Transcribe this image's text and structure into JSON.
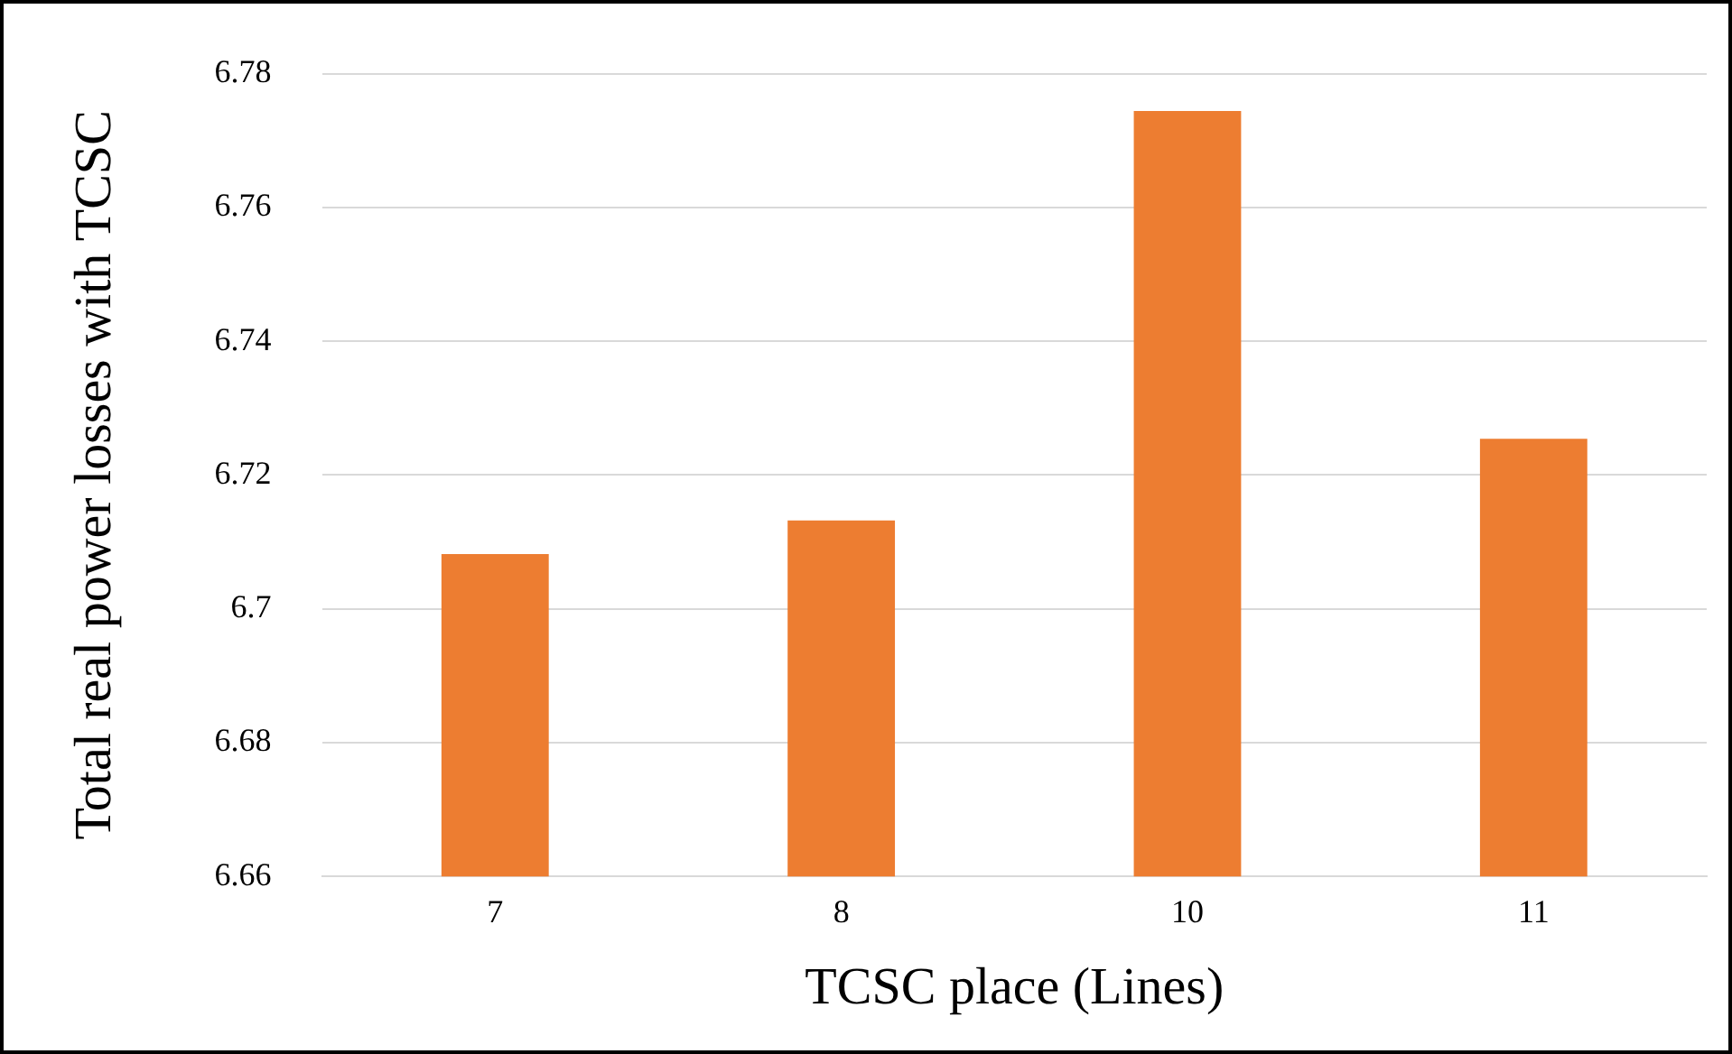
{
  "chart_data": {
    "type": "bar",
    "xlabel": "TCSC place (Lines)",
    "ylabel": "Total real power losses with TCSC",
    "categories": [
      "7",
      "8",
      "10",
      "11"
    ],
    "values": [
      6.7082,
      6.7132,
      6.7744,
      6.7254
    ],
    "color": "#ed7d31",
    "ylim": [
      6.66,
      6.78
    ],
    "yticks": [
      6.66,
      6.68,
      6.7,
      6.72,
      6.74,
      6.76,
      6.78
    ],
    "grid": "y",
    "legend": false
  }
}
